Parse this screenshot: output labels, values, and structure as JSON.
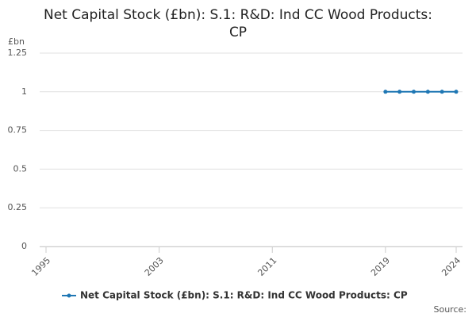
{
  "chart_data": {
    "type": "line",
    "title_lines": [
      "Net Capital Stock (£bn): S.1: R&D: Ind CC Wood Products:",
      "CP"
    ],
    "y_label": "£bn",
    "x": [
      2019,
      2020,
      2021,
      2022,
      2023,
      2024
    ],
    "series": [
      {
        "name": "Net Capital Stock (£bn): S.1: R&D: Ind CC Wood Products: CP",
        "color": "#1f77b4",
        "values": [
          1,
          1,
          1,
          1,
          1,
          1
        ]
      }
    ],
    "xlim": [
      1995,
      2024
    ],
    "xticks": [
      1995,
      2003,
      2011,
      2019,
      2024
    ],
    "ylim": [
      0,
      1.25
    ],
    "yticks": [
      0,
      0.25,
      0.5,
      0.75,
      1,
      1.25
    ],
    "grid": true,
    "legend": "bottom",
    "source": "Source:"
  }
}
